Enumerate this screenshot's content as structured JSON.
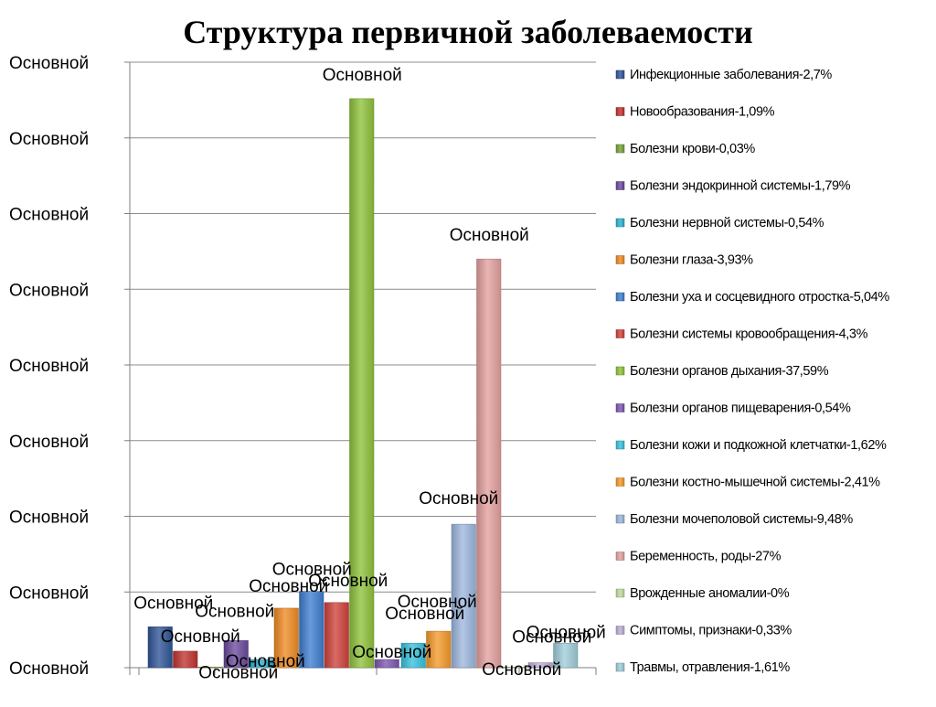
{
  "chart_data": {
    "type": "bar",
    "title": "Структура первичной заболеваемости",
    "xlabel": "",
    "ylabel": "",
    "y_tick_labels": [
      "Основной",
      "Основной",
      "Основной",
      "Основной",
      "Основной",
      "Основной",
      "Основной",
      "Основной",
      "Основной"
    ],
    "ylim": [
      0,
      40
    ],
    "grid": true,
    "legend_position": "right",
    "series": [
      {
        "name": "Инфекционные заболевания-2,7%",
        "value": 2.7,
        "color": "#2f5597",
        "group": 1,
        "data_label": "Основной"
      },
      {
        "name": "Новообразования-1,09%",
        "value": 1.09,
        "color": "#c0322f",
        "group": 1,
        "data_label": "Основной"
      },
      {
        "name": "Болезни крови-0,03%",
        "value": 0.03,
        "color": "#77a33a",
        "group": 1,
        "data_label": "Основной"
      },
      {
        "name": "Болезни эндокринной системы-1,79%",
        "value": 1.79,
        "color": "#6a4a9c",
        "group": 2,
        "data_label": "Основной"
      },
      {
        "name": "Болезни нервной системы-0,54%",
        "value": 0.54,
        "color": "#2cb1cf",
        "group": 2,
        "data_label": "Основной"
      },
      {
        "name": "Болезни глаза-3,93%",
        "value": 3.93,
        "color": "#ef8a23",
        "group": 2,
        "data_label": "Основной"
      },
      {
        "name": "Болезни уха и сосцевидного отростка-5,04%",
        "value": 5.04,
        "color": "#3f7ed0",
        "group": 2,
        "data_label": "Основной"
      },
      {
        "name": "Болезни системы кровообращения-4,3%",
        "value": 4.3,
        "color": "#d0413a",
        "group": 2,
        "data_label": "Основной"
      },
      {
        "name": "Болезни органов дыхания-37,59%",
        "value": 37.59,
        "color": "#8ec23b",
        "group": 2,
        "data_label": "Основной"
      },
      {
        "name": "Болезни органов пищеварения-0,54%",
        "value": 0.54,
        "color": "#7c56b0",
        "group": 2,
        "data_label": "Основной"
      },
      {
        "name": "Болезни кожи и подкожной клетчатки-1,62%",
        "value": 1.62,
        "color": "#36c1dc",
        "group": 3,
        "data_label": "Основной"
      },
      {
        "name": "Болезни костно-мышечной системы-2,41%",
        "value": 2.41,
        "color": "#f59a2a",
        "group": 3,
        "data_label": "Основной"
      },
      {
        "name": "Болезни мочеполовой системы-9,48%",
        "value": 9.48,
        "color": "#9db7de",
        "group": 3,
        "data_label": "Основной"
      },
      {
        "name": "Беременность, роды-27%",
        "value": 27.0,
        "color": "#e3a09e",
        "group": 3,
        "data_label": "Основной"
      },
      {
        "name": "Врожденные аномалии-0%",
        "value": 0.0,
        "color": "#c2dca0",
        "group": 3,
        "data_label": "Основной"
      },
      {
        "name": "Симптомы, признаки-0,33%",
        "value": 0.33,
        "color": "#bcaed6",
        "group": 4,
        "data_label": "Основной"
      },
      {
        "name": "Травмы, отравления-1,61%",
        "value": 1.61,
        "color": "#9fcdd9",
        "group": 4,
        "data_label": "Основной"
      }
    ]
  }
}
